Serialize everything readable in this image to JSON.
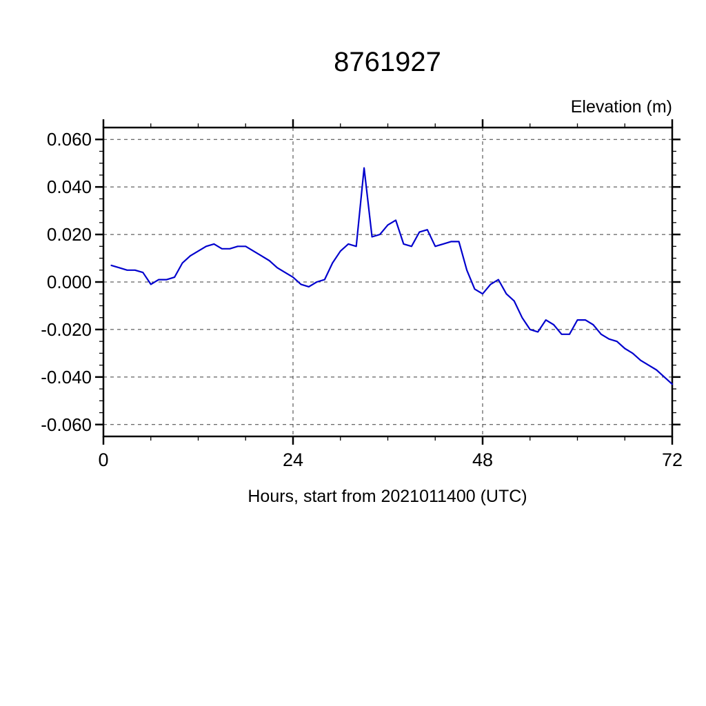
{
  "page": {
    "background": "#ffffff"
  },
  "chart_data": {
    "type": "line",
    "title": "8761927",
    "ylabel": "Elevation (m)",
    "xlabel": "Hours, start from 2021011400 (UTC)",
    "xlim": [
      0,
      72
    ],
    "ylim": [
      -0.065,
      0.065
    ],
    "xticks": [
      0,
      24,
      48,
      72
    ],
    "xtick_labels": [
      "0",
      "24",
      "48",
      "72"
    ],
    "yticks": [
      0.06,
      0.04,
      0.02,
      0.0,
      -0.02,
      -0.04,
      -0.06
    ],
    "ytick_labels": [
      "0.060",
      "0.040",
      "0.020",
      "0.000",
      "-0.020",
      "-0.040",
      "-0.060"
    ],
    "x_minor_step": 6,
    "y_minor_step": 0.005,
    "grid": "dashed",
    "legend": "none",
    "line_color": "#0000cd",
    "x": [
      1,
      2,
      3,
      4,
      5,
      6,
      7,
      8,
      9,
      10,
      11,
      12,
      13,
      14,
      15,
      16,
      17,
      18,
      19,
      20,
      21,
      22,
      23,
      24,
      25,
      26,
      27,
      28,
      29,
      30,
      31,
      32,
      33,
      34,
      35,
      36,
      37,
      38,
      39,
      40,
      41,
      42,
      43,
      44,
      45,
      46,
      47,
      48,
      49,
      50,
      51,
      52,
      53,
      54,
      55,
      56,
      57,
      58,
      59,
      60,
      61,
      62,
      63,
      64,
      65,
      66,
      67,
      68,
      69,
      70,
      71,
      72
    ],
    "values": [
      0.007,
      0.006,
      0.005,
      0.005,
      0.004,
      -0.001,
      0.001,
      0.001,
      0.002,
      0.008,
      0.011,
      0.013,
      0.015,
      0.016,
      0.014,
      0.014,
      0.015,
      0.015,
      0.013,
      0.011,
      0.009,
      0.006,
      0.004,
      0.002,
      -0.001,
      -0.002,
      0.0,
      0.001,
      0.008,
      0.013,
      0.016,
      0.015,
      0.048,
      0.019,
      0.02,
      0.024,
      0.026,
      0.016,
      0.015,
      0.021,
      0.022,
      0.015,
      0.016,
      0.017,
      0.017,
      0.005,
      -0.003,
      -0.005,
      -0.001,
      0.001,
      -0.005,
      -0.008,
      -0.015,
      -0.02,
      -0.021,
      -0.016,
      -0.018,
      -0.022,
      -0.022,
      -0.016,
      -0.016,
      -0.018,
      -0.022,
      -0.024,
      -0.025,
      -0.028,
      -0.03,
      -0.033,
      -0.035,
      -0.037,
      -0.04,
      -0.043
    ]
  }
}
